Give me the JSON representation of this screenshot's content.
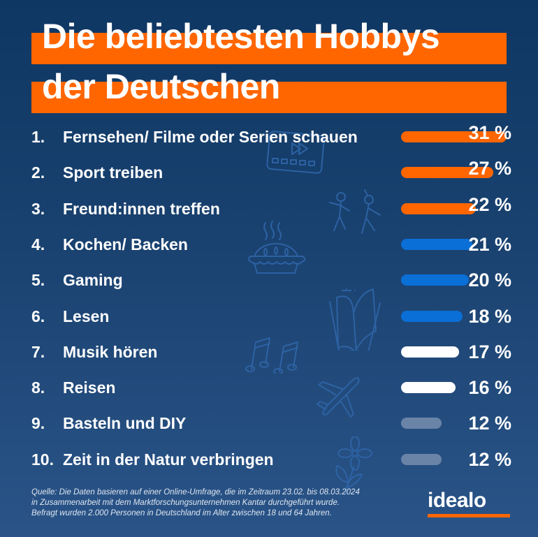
{
  "title": {
    "line1": "Die beliebtesten Hobbys",
    "line2": "der Deutschen"
  },
  "chart_data": {
    "type": "bar",
    "orientation": "horizontal",
    "title": "Die beliebtesten Hobbys der Deutschen",
    "unit": "%",
    "xlim": [
      0,
      31
    ],
    "categories": [
      "Fernsehen/ Filme oder Serien schauen",
      "Sport treiben",
      "Freund:innen treffen",
      "Kochen/ Backen",
      "Gaming",
      "Lesen",
      "Musik hören",
      "Reisen",
      "Basteln und DIY",
      "Zeit in der Natur verbringen"
    ],
    "values": [
      31,
      27,
      22,
      21,
      20,
      18,
      17,
      16,
      12,
      12
    ],
    "items": [
      {
        "rank": "1.",
        "label": "Fernsehen/ Filme oder Serien schauen",
        "value": 31,
        "value_label": "31 %",
        "color": "#ff6600"
      },
      {
        "rank": "2.",
        "label": "Sport treiben",
        "value": 27,
        "value_label": "27 %",
        "color": "#ff6600"
      },
      {
        "rank": "3.",
        "label": "Freund:innen treffen",
        "value": 22,
        "value_label": "22 %",
        "color": "#ff6600"
      },
      {
        "rank": "4.",
        "label": "Kochen/ Backen",
        "value": 21,
        "value_label": "21 %",
        "color": "#0a6fd6"
      },
      {
        "rank": "5.",
        "label": "Gaming",
        "value": 20,
        "value_label": "20 %",
        "color": "#0a6fd6"
      },
      {
        "rank": "6.",
        "label": "Lesen",
        "value": 18,
        "value_label": "18 %",
        "color": "#0a6fd6"
      },
      {
        "rank": "7.",
        "label": "Musik hören",
        "value": 17,
        "value_label": "17 %",
        "color": "#ffffff"
      },
      {
        "rank": "8.",
        "label": "Reisen",
        "value": 16,
        "value_label": "16 %",
        "color": "#ffffff"
      },
      {
        "rank": "9.",
        "label": "Basteln und DIY",
        "value": 12,
        "value_label": "12 %",
        "color": "#6a84a8"
      },
      {
        "rank": "10.",
        "label": "Zeit in der Natur verbringen",
        "value": 12,
        "value_label": "12 %",
        "color": "#6a84a8"
      }
    ]
  },
  "footer": {
    "source_line1": "Quelle: Die Daten basieren auf einer Online-Umfrage, die im Zeitraum 23.02. bis 08.03.2024",
    "source_line2": "in Zusammenarbeit mit dem Marktforschungsunternehmen Kantar durchgeführt wurde.",
    "source_line3": "Befragt wurden 2.000 Personen in Deutschland im Alter zwischen 18 und 64 Jahren.",
    "logo": "idealo"
  },
  "decorations": [
    "film-icon",
    "dancing-people-icon",
    "pie-icon",
    "book-icon",
    "music-notes-icon",
    "airplane-icon",
    "flower-icon"
  ],
  "colors": {
    "accent": "#ff6600",
    "background_top": "#0f3763",
    "background_bottom": "#2a5488"
  }
}
